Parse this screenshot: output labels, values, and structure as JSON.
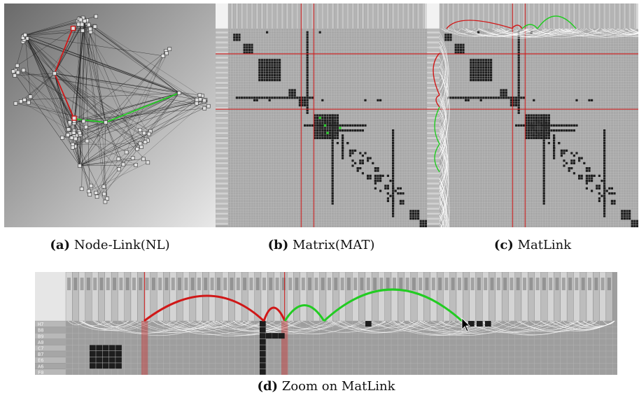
{
  "panels": {
    "a": {
      "label": "(a)",
      "title": "Node-Link(NL)"
    },
    "b": {
      "label": "(b)",
      "title": "Matrix(MAT)"
    },
    "c": {
      "label": "(c)",
      "title": "MatLink"
    },
    "d": {
      "label": "(d)",
      "title": "Zoom on MatLink"
    }
  },
  "zoom_row_labels": [
    "H7",
    "B8",
    "B9",
    "A0",
    "C7",
    "B7",
    "E6",
    "A6",
    "F0"
  ],
  "colors": {
    "highlight_red": "#d01818",
    "highlight_green": "#22cc22",
    "cell_dark": "#1e1e1e",
    "grid_bg": "#9a9a9a"
  }
}
